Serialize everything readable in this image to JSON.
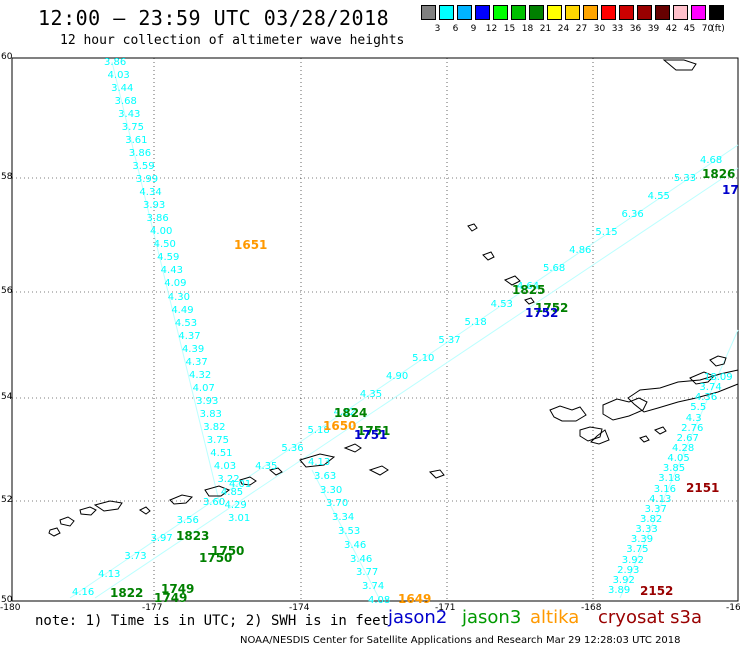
{
  "header": {
    "title": "12:00 – 23:59 UTC 03/28/2018",
    "subtitle": "12 hour collection of altimeter wave heights"
  },
  "legend": {
    "unit_label": "(ft)",
    "items": [
      {
        "color": "#808080",
        "label": "3"
      },
      {
        "color": "#00ffff",
        "label": "6"
      },
      {
        "color": "#00b4ff",
        "label": "9"
      },
      {
        "color": "#0000ff",
        "label": "12"
      },
      {
        "color": "#00ff00",
        "label": "15"
      },
      {
        "color": "#00c000",
        "label": "18"
      },
      {
        "color": "#008000",
        "label": "21"
      },
      {
        "color": "#ffff00",
        "label": "24"
      },
      {
        "color": "#ffd700",
        "label": "27"
      },
      {
        "color": "#ffa500",
        "label": "30"
      },
      {
        "color": "#ff0000",
        "label": "33"
      },
      {
        "color": "#cc0000",
        "label": "36"
      },
      {
        "color": "#990000",
        "label": "39"
      },
      {
        "color": "#660000",
        "label": "42"
      },
      {
        "color": "#ffc0cb",
        "label": "45"
      },
      {
        "color": "#ff00ff",
        "label": "70"
      },
      {
        "color": "#000000",
        "label": ""
      }
    ]
  },
  "axes": {
    "lat_labels": [
      "60",
      "58",
      "56",
      "54",
      "52",
      "50"
    ],
    "lon_labels": [
      "-180",
      "-177",
      "-174",
      "-171",
      "-168",
      "-16"
    ]
  },
  "tracks": [
    {
      "color": "#00ffff",
      "values": [
        "3.86",
        "4.03",
        "3.44",
        "3.68",
        "3.43",
        "3.75",
        "3.61",
        "3.86",
        "3.59",
        "3.99",
        "4.34",
        "3.93",
        "3.86",
        "4.00",
        "4.50",
        "4.59",
        "4.43",
        "4.09",
        "4.30",
        "4.49",
        "4.53",
        "4.37",
        "4.39",
        "4.37",
        "4.32",
        "4.07",
        "3.93",
        "3.83",
        "3.82",
        "3.75",
        "4.51",
        "4.03",
        "3.22",
        "4.85",
        "4.29",
        "3.01"
      ]
    },
    {
      "color": "#00ffff",
      "values": [
        "4.13",
        "3.63",
        "3.30",
        "3.70",
        "3.34",
        "3.53",
        "3.46",
        "3.46",
        "3.77",
        "3.74",
        "4.08"
      ]
    },
    {
      "color": "#00ffff",
      "values": [
        "18.09",
        "3.74",
        "4.36",
        "5.5",
        "4.3",
        "2.76",
        "2.67",
        "4.28",
        "4.05",
        "3.85",
        "3.18",
        "3.16",
        "4.13",
        "3.37",
        "3.82",
        "3.33",
        "3.39",
        "3.75",
        "3.92",
        "2.93",
        "3.92",
        "3.89"
      ]
    },
    {
      "color": "#00ffff",
      "values": [
        "4.16",
        "4.13",
        "3.73",
        "3.97",
        "3.56",
        "3.60",
        "4.01",
        "4.35",
        "5.36",
        "5.18",
        "4.52",
        "4.35",
        "4.90",
        "5.10",
        "5.37",
        "5.18",
        "4.53",
        "4.64",
        "5.68",
        "4.86",
        "5.15",
        "6.36",
        "4.55",
        "5.33",
        "4.68"
      ]
    }
  ],
  "time_labels": [
    {
      "text": "1651",
      "color": "#ff9900"
    },
    {
      "text": "1826",
      "color": "#008000"
    },
    {
      "text": "17",
      "color": "#0000cc"
    },
    {
      "text": "1825",
      "color": "#008000"
    },
    {
      "text": "1752",
      "color": "#008000"
    },
    {
      "text": "1752",
      "color": "#0000cc"
    },
    {
      "text": "1824",
      "color": "#008000"
    },
    {
      "text": "1650",
      "color": "#ff9900"
    },
    {
      "text": "1751",
      "color": "#008000"
    },
    {
      "text": "1751",
      "color": "#0000cc"
    },
    {
      "text": "1823",
      "color": "#008000"
    },
    {
      "text": "1750",
      "color": "#008000"
    },
    {
      "text": "1750",
      "color": "#008000"
    },
    {
      "text": "1749",
      "color": "#008000"
    },
    {
      "text": "1749",
      "color": "#008000"
    },
    {
      "text": "1822",
      "color": "#008000"
    },
    {
      "text": "1649",
      "color": "#ff9900"
    },
    {
      "text": "2151",
      "color": "#990000"
    },
    {
      "text": "2152",
      "color": "#990000"
    }
  ],
  "footer": {
    "note": "note: 1) Time is in UTC; 2) SWH is in feet",
    "missions": [
      {
        "name": "jason2",
        "color": "#0000cc"
      },
      {
        "name": "jason3",
        "color": "#009900"
      },
      {
        "name": "altika",
        "color": "#ff9900"
      },
      {
        "name": "cryosat s3a",
        "color": "#990000"
      }
    ],
    "credit": "NOAA/NESDIS Center for Satellite Applications and Research    Mar 29 12:28:03 UTC 2018"
  }
}
